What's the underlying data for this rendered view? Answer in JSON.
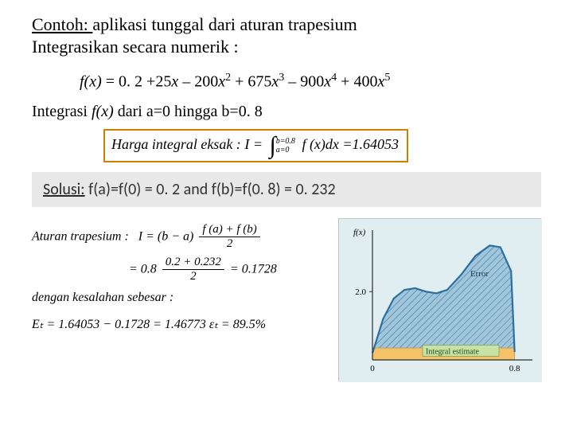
{
  "title": {
    "underlined": "Contoh: ",
    "rest": "aplikasi tunggal dari aturan trapesium"
  },
  "subtitle": "Integrasikan secara numerik :",
  "polynomial": {
    "lhs": "f(x)",
    "c0": "0. 2",
    "c1": "+25",
    "v1": "x",
    "c2": "– 200",
    "v2": "x",
    "e2": "2",
    "c3": "+ 675",
    "v3": "x",
    "e3": "3",
    "c4": "– 900",
    "v4": "x",
    "e4": "4",
    "c5": "+ 400",
    "v5": "x",
    "e5": "5"
  },
  "range": {
    "pre": "Integrasi ",
    "fx": "f(x)",
    "rest": "  dari  a=0 hingga b=0. 8"
  },
  "exact": {
    "label": "Harga integral eksak : ",
    "I": "I",
    "upper": "b=0.8",
    "lower": "a=0",
    "integrand": "f (x)dx",
    "value": "=1.64053"
  },
  "solusi": {
    "label": "Solusi:",
    "body": "   f(a)=f(0) = 0. 2  and   f(b)=f(0. 8) = 0. 232"
  },
  "trapezoid": {
    "label": "Aturan trapesium :",
    "line1_I": "I",
    "line1_lhs": "= (b − a)",
    "frac1_num": "f (a) + f (b)",
    "frac1_den": "2",
    "line2_pre": "= 0.8",
    "frac2_num": "0.2 + 0.232",
    "frac2_den": "2",
    "line2_post": "= 0.1728",
    "err_label": "dengan kesalahan sebesar :",
    "err_eq": "Eₜ = 1.64053 − 0.1728 = 1.46773    εₜ = 89.5%"
  },
  "chart": {
    "ylabel": "f(x)",
    "ytick": "2.0",
    "xticks": [
      "0",
      "0.8"
    ],
    "annot": "Error",
    "area_label": "Integral estimate",
    "colors": {
      "bg": "#e0eef2",
      "axis": "#2a2a2a",
      "curve": "#2a6fa0",
      "fill": "#9fc6dc",
      "hatch": "#3a6c8b",
      "band": "#f4c267",
      "label_box": "#c6e3a5"
    },
    "curve_points": [
      [
        0.0,
        0.2
      ],
      [
        0.06,
        1.2
      ],
      [
        0.12,
        1.8
      ],
      [
        0.18,
        2.05
      ],
      [
        0.24,
        2.1
      ],
      [
        0.3,
        2.0
      ],
      [
        0.36,
        1.95
      ],
      [
        0.42,
        2.05
      ],
      [
        0.5,
        2.5
      ],
      [
        0.58,
        3.05
      ],
      [
        0.66,
        3.35
      ],
      [
        0.72,
        3.3
      ],
      [
        0.78,
        2.6
      ],
      [
        0.8,
        0.232
      ]
    ],
    "xlim": [
      0,
      0.9
    ],
    "ylim": [
      0,
      3.8
    ]
  }
}
